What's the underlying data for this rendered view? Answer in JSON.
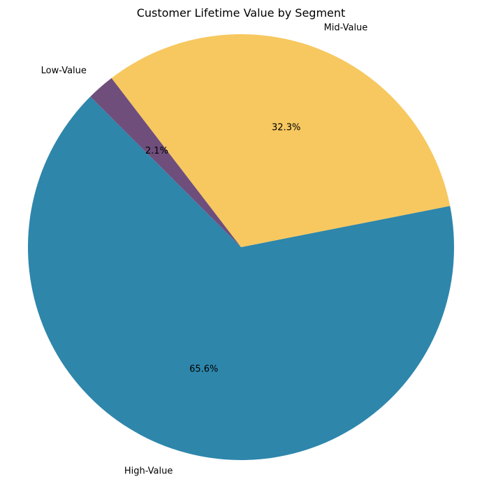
{
  "chart_data": {
    "type": "pie",
    "title": "Customer Lifetime Value by Segment",
    "start_angle_deg": 135,
    "direction": "counterclockwise",
    "slices": [
      {
        "label": "High-Value",
        "value": 65.6,
        "pct_label": "65.6%",
        "color": "#2E86AB"
      },
      {
        "label": "Mid-Value",
        "value": 32.3,
        "pct_label": "32.3%",
        "color": "#F6C85F"
      },
      {
        "label": "Low-Value",
        "value": 2.1,
        "pct_label": "2.1%",
        "color": "#6F4E7C"
      }
    ]
  }
}
